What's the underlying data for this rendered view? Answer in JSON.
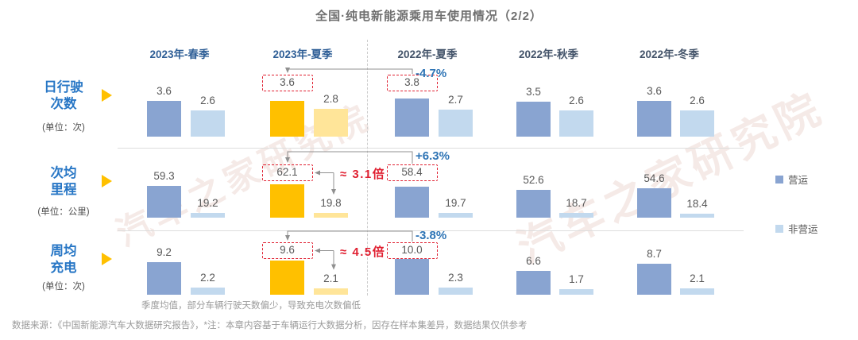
{
  "title": "全国·纯电新能源乘用车使用情况（2/2）",
  "watermark": "汽车之家研究院",
  "chart_data": {
    "type": "bar",
    "categories": [
      "2023年-春季",
      "2023年-夏季",
      "2022年-夏季",
      "2022年-秋季",
      "2022年-冬季"
    ],
    "highlight_category": "2023年-夏季",
    "legend": [
      {
        "name": "营运",
        "color": "#89a4d1",
        "highlight_color": "#ffc000"
      },
      {
        "name": "非营运",
        "color": "#c2d9ee",
        "highlight_color": "#ffe599"
      }
    ],
    "rows": [
      {
        "metric": "日行驶\n次数",
        "unit": "(单位：次)",
        "series": [
          {
            "name": "营运",
            "values": [
              3.6,
              3.6,
              3.8,
              3.5,
              3.6
            ],
            "labels": [
              "3.6",
              "3.6",
              "3.8",
              "3.5",
              "3.6"
            ]
          },
          {
            "name": "非营运",
            "values": [
              2.6,
              2.8,
              2.7,
              2.6,
              2.6
            ],
            "labels": [
              "2.6",
              "2.8",
              "2.7",
              "2.6",
              "2.6"
            ]
          }
        ],
        "comparison": {
          "label": "-4.7%",
          "from": "2023年-夏季",
          "to": "2022年-夏季"
        },
        "ratio": null
      },
      {
        "metric": "次均\n里程",
        "unit": "(单位：公里)",
        "series": [
          {
            "name": "营运",
            "values": [
              59.3,
              62.1,
              58.4,
              52.6,
              54.6
            ],
            "labels": [
              "59.3",
              "62.1",
              "58.4",
              "52.6",
              "54.6"
            ]
          },
          {
            "name": "非营运",
            "values": [
              19.2,
              19.8,
              19.7,
              18.7,
              18.4
            ],
            "labels": [
              "19.2",
              "19.8",
              "19.7",
              "18.7",
              "18.4"
            ]
          }
        ],
        "comparison": {
          "label": "+6.3%",
          "from": "2023年-夏季",
          "to": "2022年-夏季"
        },
        "ratio": {
          "label": "≈ 3.1倍",
          "between": [
            "营运",
            "非营运"
          ],
          "category": "2023年-夏季"
        }
      },
      {
        "metric": "周均\n充电",
        "unit": "(单位：次)",
        "series": [
          {
            "name": "营运",
            "values": [
              9.2,
              9.6,
              10.0,
              6.6,
              8.7
            ],
            "labels": [
              "9.2",
              "9.6",
              "10.0",
              "6.6",
              "8.7"
            ]
          },
          {
            "name": "非营运",
            "values": [
              2.2,
              2.1,
              2.3,
              1.7,
              2.1
            ],
            "labels": [
              "2.2",
              "2.1",
              "2.3",
              "1.7",
              "2.1"
            ]
          }
        ],
        "comparison": {
          "label": "-3.8%",
          "from": "2023年-夏季",
          "to": "2022年-夏季"
        },
        "ratio": {
          "label": "≈ 4.5倍",
          "between": [
            "营运",
            "非营运"
          ],
          "category": "2023年-夏季"
        }
      }
    ]
  },
  "notes": {
    "chart_note": "季度均值，部分车辆行驶天数偏少，导致充电次数偏低",
    "source_note": "数据来源：《中国新能源汽车大数据研究报告》，*注：本章内容基于车辆运行大数据分析，因存在样本集差异，数据结果仅供参考"
  },
  "colors": {
    "accent_blue": "#2e74b5",
    "alert_red": "#e02031",
    "bar_blue": "#89a4d1",
    "bar_light_blue": "#c2d9ee",
    "bar_gold": "#ffc000",
    "bar_light_gold": "#ffe599",
    "header_2023": "#2e5e96",
    "header_2022": "#44546a"
  }
}
